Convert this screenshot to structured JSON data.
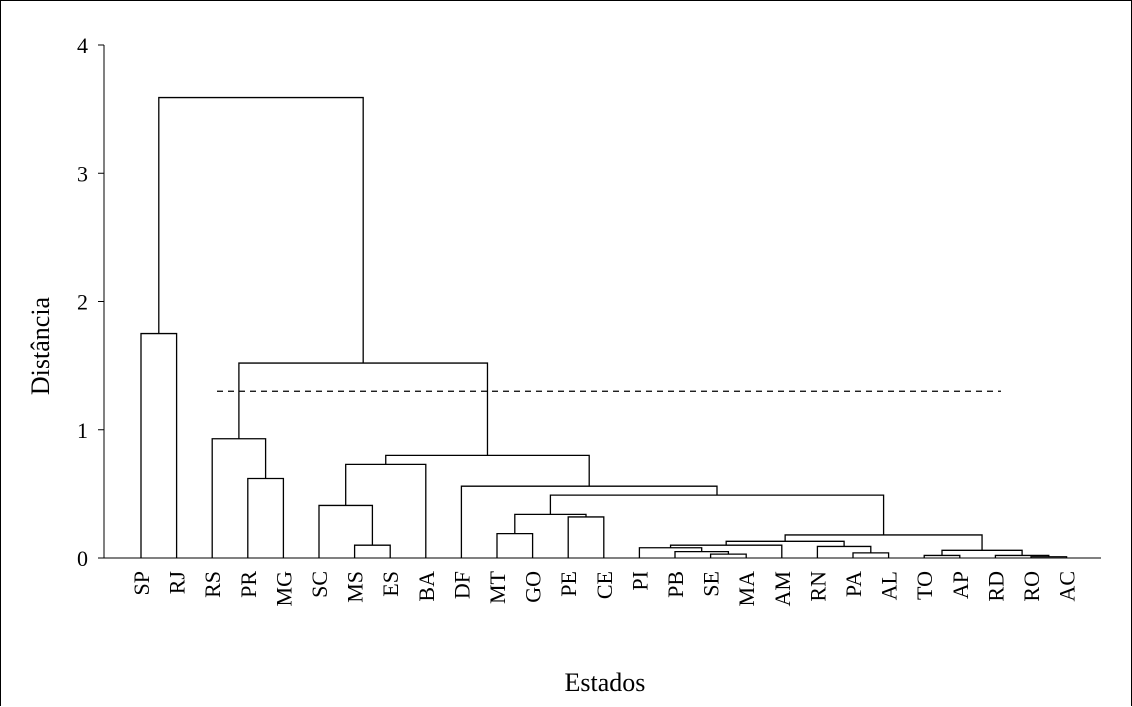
{
  "chart_data": {
    "type": "dendrogram",
    "xlabel": "Estados",
    "ylabel": "Distância",
    "ylim": [
      0,
      4
    ],
    "yticks": [
      "0",
      "1",
      "2",
      "3",
      "4"
    ],
    "leaves": [
      "SP",
      "RJ",
      "RS",
      "PR",
      "MG",
      "SC",
      "MS",
      "ES",
      "BA",
      "DF",
      "MT",
      "GO",
      "PE",
      "CE",
      "PI",
      "PB",
      "SE",
      "MA",
      "AM",
      "RN",
      "PA",
      "AL",
      "TO",
      "AP",
      "RD",
      "RO",
      "AC"
    ],
    "cut_height": 1.3,
    "merges": [
      {
        "a": 0,
        "b": 1,
        "h": 1.75
      },
      {
        "a": 3,
        "b": 4,
        "h": 0.62
      },
      {
        "a": 2,
        "b": 28,
        "h": 0.93
      },
      {
        "a": 6,
        "b": 7,
        "h": 0.1
      },
      {
        "a": 5,
        "b": 30,
        "h": 0.41
      },
      {
        "a": 31,
        "b": 8,
        "h": 0.73
      },
      {
        "a": 12,
        "b": 13,
        "h": 0.32
      },
      {
        "a": 10,
        "b": 11,
        "h": 0.19
      },
      {
        "a": 34,
        "b": 33,
        "h": 0.34
      },
      {
        "a": 16,
        "b": 17,
        "h": 0.03
      },
      {
        "a": 15,
        "b": 36,
        "h": 0.05
      },
      {
        "a": 14,
        "b": 37,
        "h": 0.08
      },
      {
        "a": 38,
        "b": 18,
        "h": 0.1
      },
      {
        "a": 20,
        "b": 21,
        "h": 0.04
      },
      {
        "a": 19,
        "b": 40,
        "h": 0.09
      },
      {
        "a": 39,
        "b": 41,
        "h": 0.13
      },
      {
        "a": 25,
        "b": 26,
        "h": 0.01
      },
      {
        "a": 24,
        "b": 43,
        "h": 0.02
      },
      {
        "a": 22,
        "b": 23,
        "h": 0.02
      },
      {
        "a": 45,
        "b": 44,
        "h": 0.06
      },
      {
        "a": 42,
        "b": 46,
        "h": 0.18
      },
      {
        "a": 35,
        "b": 47,
        "h": 0.49
      },
      {
        "a": 9,
        "b": 48,
        "h": 0.56
      },
      {
        "a": 32,
        "b": 49,
        "h": 0.8
      },
      {
        "a": 29,
        "b": 50,
        "h": 1.52
      },
      {
        "a": 27,
        "b": 51,
        "h": 3.59
      }
    ]
  }
}
